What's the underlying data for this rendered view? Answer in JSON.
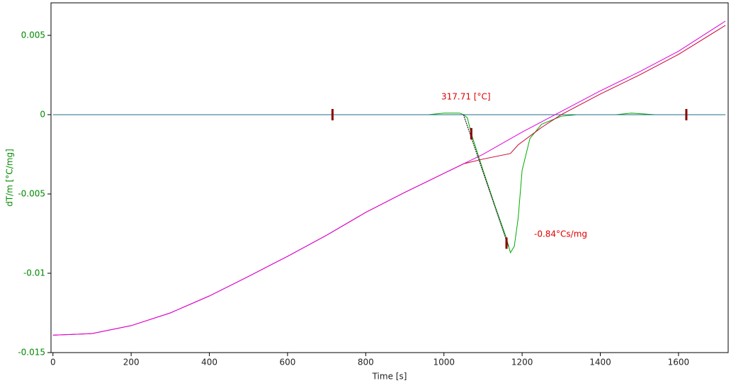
{
  "chart_data": {
    "type": "line",
    "x_label": "Time [s]",
    "y_label": "dT/m  [°C/mg]",
    "xlim": [
      -5,
      1727
    ],
    "ylim": [
      -0.015,
      0.00705
    ],
    "xticks": [
      0,
      200,
      400,
      600,
      800,
      1000,
      1200,
      1400,
      1600
    ],
    "yticks": [
      0.005,
      0,
      -0.005,
      -0.01,
      -0.015
    ],
    "series": [
      {
        "color": "#00aa00",
        "x": [
          0,
          960,
          1000,
          1040,
          1050,
          1060,
          1070,
          1100,
          1130,
          1160,
          1170,
          1180,
          1190,
          1200,
          1220,
          1250,
          1300,
          1340,
          1440,
          1480,
          1540,
          1720
        ],
        "values": [
          0,
          0,
          0.0001,
          0.0001,
          0,
          -0.0002,
          -0.0012,
          -0.0035,
          -0.0057,
          -0.0078,
          -0.0087,
          -0.0083,
          -0.0065,
          -0.0035,
          -0.0015,
          -0.0006,
          -0.0001,
          0,
          0,
          0.0001,
          0,
          0
        ]
      },
      {
        "color": "#1f6f8b",
        "x": [
          0,
          1720
        ],
        "values": [
          0,
          0
        ]
      },
      {
        "color": "#cc0033",
        "x": [
          0,
          100,
          200,
          300,
          400,
          500,
          600,
          700,
          800,
          900,
          1000,
          1050,
          1100,
          1170,
          1190,
          1250,
          1300,
          1400,
          1500,
          1600,
          1720
        ],
        "values": [
          -0.0139,
          -0.0138,
          -0.0133,
          -0.0125,
          -0.01143,
          -0.0102,
          -0.00893,
          -0.0076,
          -0.00616,
          -0.0049,
          -0.0037,
          -0.0031,
          -0.0028,
          -0.00245,
          -0.0019,
          -0.0008,
          0,
          0.0013,
          0.0025,
          0.0038,
          0.00563
        ]
      },
      {
        "color": "#dd00dd",
        "x": [
          0,
          100,
          200,
          300,
          400,
          500,
          600,
          700,
          800,
          900,
          1000,
          1050,
          1100,
          1200,
          1300,
          1400,
          1500,
          1600,
          1720
        ],
        "values": [
          -0.0139,
          -0.0138,
          -0.0133,
          -0.0125,
          -0.01143,
          -0.0102,
          -0.00893,
          -0.0076,
          -0.00616,
          -0.0049,
          -0.0037,
          -0.0031,
          -0.0025,
          -0.0011,
          0.0002,
          0.0015,
          0.0027,
          0.004,
          0.0059
        ]
      },
      {
        "color": "#222222",
        "x": [
          1050,
          1165
        ],
        "values": [
          0,
          -0.0083
        ]
      }
    ],
    "markers": {
      "color": "#8b0000",
      "x": [
        715,
        1620,
        1070,
        1160
      ],
      "values": [
        0,
        0,
        -0.0012,
        -0.0081
      ]
    },
    "annotations": [
      "317.71 [°C]",
      "-0.84°Cs/mg"
    ]
  }
}
